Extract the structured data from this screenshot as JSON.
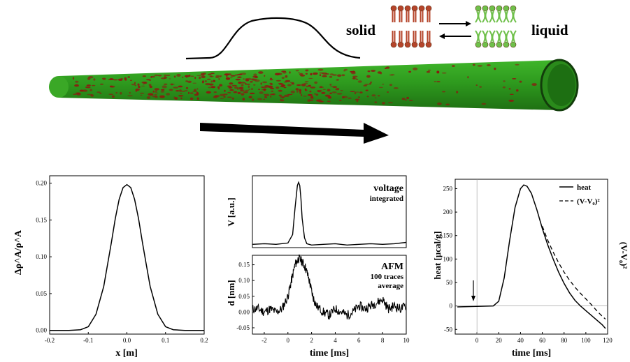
{
  "diagram": {
    "label_solid": "solid",
    "label_liquid": "liquid",
    "colors": {
      "membrane_green": "#2e9a1e",
      "domain_red": "#8b1a10",
      "lipid_red": "#b5452b",
      "lipid_green": "#6fc04a"
    }
  },
  "chart_data": [
    {
      "type": "line",
      "title": "",
      "xlabel": "x [m]",
      "ylabel": "Δρ^A/ρ^A",
      "xlim": [
        -0.2,
        0.2
      ],
      "ylim": [
        -0.005,
        0.21
      ],
      "xticks": [
        "-0.2",
        "-0.1",
        "0.0",
        "0.1",
        "0.2"
      ],
      "xtick_values": [
        -0.2,
        -0.1,
        0.0,
        0.1,
        0.2
      ],
      "yticks": [
        "0.00",
        "0.05",
        "0.10",
        "0.15",
        "0.20"
      ],
      "ytick_values": [
        0.0,
        0.05,
        0.1,
        0.15,
        0.2
      ],
      "series": [
        {
          "x": [
            -0.2,
            -0.15,
            -0.12,
            -0.1,
            -0.08,
            -0.06,
            -0.05,
            -0.04,
            -0.03,
            -0.02,
            -0.01,
            0.0,
            0.01,
            0.02,
            0.03,
            0.04,
            0.05,
            0.06,
            0.08,
            0.1,
            0.12,
            0.15,
            0.2
          ],
          "y": [
            0.0,
            0.0,
            0.001,
            0.005,
            0.022,
            0.06,
            0.09,
            0.12,
            0.152,
            0.178,
            0.194,
            0.198,
            0.194,
            0.178,
            0.152,
            0.12,
            0.09,
            0.06,
            0.022,
            0.005,
            0.001,
            0.0,
            0.0
          ]
        }
      ]
    },
    {
      "type": "line",
      "title": "",
      "annotation": [
        "voltage",
        "integrated"
      ],
      "xlabel": "",
      "ylabel": "V [a.u.]",
      "xlim": [
        -3,
        10
      ],
      "ylim": [
        0,
        1.1
      ],
      "series": [
        {
          "x": [
            -3,
            -2,
            -1,
            0,
            0.4,
            0.6,
            0.8,
            0.9,
            1.0,
            1.1,
            1.2,
            1.4,
            1.6,
            2,
            3,
            4,
            5,
            6,
            7,
            8,
            9,
            10
          ],
          "y": [
            0.05,
            0.06,
            0.05,
            0.07,
            0.2,
            0.6,
            0.95,
            1.0,
            0.95,
            0.75,
            0.45,
            0.15,
            0.06,
            0.04,
            0.05,
            0.06,
            0.04,
            0.05,
            0.06,
            0.05,
            0.06,
            0.08
          ]
        }
      ]
    },
    {
      "type": "line",
      "title": "",
      "annotation": [
        "AFM",
        "100 traces",
        "average"
      ],
      "xlabel": "time [ms]",
      "ylabel": "d [nm]",
      "xlim": [
        -3,
        10
      ],
      "ylim": [
        -0.07,
        0.18
      ],
      "xticks": [
        "-2",
        "0",
        "2",
        "4",
        "6",
        "8",
        "10"
      ],
      "xtick_values": [
        -2,
        0,
        2,
        4,
        6,
        8,
        10
      ],
      "yticks": [
        "-0.05",
        "0.00",
        "0.05",
        "0.10",
        "0.15"
      ],
      "ytick_values": [
        -0.05,
        0.0,
        0.05,
        0.1,
        0.15
      ],
      "series": [
        {
          "x": [
            -3,
            -2.5,
            -2,
            -1.5,
            -1,
            -0.5,
            0,
            0.3,
            0.6,
            0.9,
            1.2,
            1.5,
            1.8,
            2.1,
            2.4,
            3,
            3.5,
            4,
            4.5,
            5,
            5.5,
            6,
            6.5,
            7,
            7.5,
            8,
            8.5,
            9,
            9.5,
            10
          ],
          "y": [
            0.01,
            0.01,
            0.0,
            0.01,
            0.0,
            0.01,
            0.05,
            0.1,
            0.15,
            0.17,
            0.16,
            0.14,
            0.1,
            0.05,
            0.02,
            0.0,
            -0.01,
            0.01,
            0.0,
            -0.01,
            0.0,
            0.02,
            0.01,
            0.02,
            0.03,
            0.04,
            0.01,
            0.02,
            0.01,
            0.02
          ]
        }
      ]
    },
    {
      "type": "line",
      "title": "",
      "xlabel": "time [ms]",
      "ylabel": "heat [µcal/g]",
      "ylabel_right": "(V-V₀)²",
      "xlim": [
        -20,
        120
      ],
      "ylim": [
        -60,
        270
      ],
      "xticks": [
        "0",
        "20",
        "40",
        "60",
        "80",
        "100",
        "120"
      ],
      "xtick_values": [
        0,
        20,
        40,
        60,
        80,
        100,
        120
      ],
      "yticks": [
        "-50",
        "0",
        "50",
        "100",
        "150",
        "200",
        "250"
      ],
      "ytick_values": [
        -50,
        0,
        50,
        100,
        150,
        200,
        250
      ],
      "legend": "top-right",
      "series": [
        {
          "name": "heat",
          "style": "solid",
          "x": [
            -18,
            0,
            15,
            20,
            25,
            30,
            35,
            40,
            43,
            46,
            50,
            55,
            60,
            65,
            70,
            75,
            80,
            85,
            90,
            95,
            100,
            105,
            110,
            115,
            118
          ],
          "y": [
            -2,
            -1,
            0,
            10,
            60,
            140,
            210,
            250,
            258,
            255,
            240,
            205,
            165,
            130,
            100,
            72,
            48,
            28,
            12,
            0,
            -10,
            -20,
            -30,
            -40,
            -48
          ]
        },
        {
          "name": "(V-V₀)²",
          "style": "dashed",
          "x": [
            60,
            65,
            70,
            75,
            80,
            85,
            90,
            95,
            100,
            105,
            110,
            115,
            118
          ],
          "y": [
            170,
            140,
            115,
            92,
            72,
            55,
            40,
            27,
            15,
            3,
            -10,
            -22,
            -28
          ]
        }
      ]
    }
  ]
}
